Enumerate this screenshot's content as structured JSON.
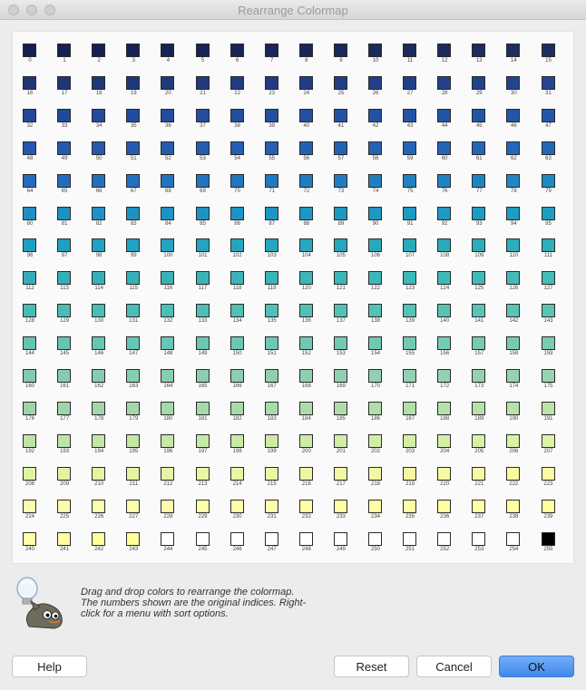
{
  "window": {
    "title": "Rearrange Colormap"
  },
  "colormap": {
    "columns": 16,
    "colors": [
      "#141f52",
      "#152053",
      "#152154",
      "#162255",
      "#172356",
      "#172457",
      "#182558",
      "#192659",
      "#1a275a",
      "#1a285b",
      "#1b295c",
      "#1b2a5d",
      "#1c2b5e",
      "#1d2c5f",
      "#1d2d60",
      "#1e2e61",
      "#1d3573",
      "#1d3675",
      "#1e3777",
      "#1e3879",
      "#1f397b",
      "#1f3a7d",
      "#203b7f",
      "#203c81",
      "#213d83",
      "#213e85",
      "#223f87",
      "#224089",
      "#23418b",
      "#23428d",
      "#24438f",
      "#254491",
      "#23479a",
      "#23489b",
      "#234a9c",
      "#234b9d",
      "#234c9e",
      "#234d9f",
      "#234ea0",
      "#234fa1",
      "#2350a2",
      "#2351a3",
      "#2352a4",
      "#2353a5",
      "#2354a6",
      "#2355a7",
      "#2356a8",
      "#2357a9",
      "#2458ab",
      "#2459ac",
      "#245aad",
      "#245bae",
      "#245cae",
      "#245daf",
      "#245eb0",
      "#245fb1",
      "#2460b2",
      "#2461b3",
      "#2462b4",
      "#2463b5",
      "#2464b6",
      "#2465b7",
      "#2466b8",
      "#2467b9",
      "#236bbb",
      "#236dbb",
      "#236fbc",
      "#2271bc",
      "#2273bd",
      "#2275bd",
      "#2277be",
      "#2179be",
      "#217bbf",
      "#217dbf",
      "#207fc0",
      "#2081c0",
      "#2083c1",
      "#1f85c1",
      "#1f87c2",
      "#1f89c2",
      "#1e8ec3",
      "#1e8fc3",
      "#1e90c3",
      "#1e91c3",
      "#1e92c3",
      "#1e93c3",
      "#1e94c3",
      "#1e95c3",
      "#1e96c3",
      "#1e97c3",
      "#1e98c3",
      "#1e99c3",
      "#1e9ac3",
      "#1e9bc3",
      "#1e9cc3",
      "#1e9dc3",
      "#209ec2",
      "#219fc1",
      "#22a0c1",
      "#23a1c0",
      "#24a2bf",
      "#25a3bf",
      "#26a4be",
      "#27a5bd",
      "#28a6bd",
      "#29a7bc",
      "#2aa8bb",
      "#2ba9bb",
      "#2caaba",
      "#2dabb9",
      "#2eacb9",
      "#2fadb8",
      "#33aeb9",
      "#34afb9",
      "#35b0b9",
      "#36b1b9",
      "#37b2b9",
      "#38b3b9",
      "#39b4b9",
      "#3ab5b9",
      "#3bb6b9",
      "#3cb7b9",
      "#3db8b9",
      "#3eb9b9",
      "#3fbab9",
      "#40bbb9",
      "#41bcb9",
      "#42bdb9",
      "#45bdb5",
      "#46beb5",
      "#48beb5",
      "#49bfb5",
      "#4bbfb5",
      "#4cc0b5",
      "#4ec0b5",
      "#4fc1b5",
      "#51c1b5",
      "#52c2b5",
      "#54c2b5",
      "#55c3b5",
      "#57c3b5",
      "#58c4b5",
      "#5ac4b5",
      "#5bc5b5",
      "#63c4b3",
      "#64c5b3",
      "#66c5b3",
      "#67c6b3",
      "#69c6b3",
      "#6ac7b3",
      "#6cc7b3",
      "#6dc8b3",
      "#6fc8b3",
      "#70c9b3",
      "#72c9b3",
      "#73cab3",
      "#75cab3",
      "#76cbb3",
      "#78cbb3",
      "#79ccb3",
      "#82cbb1",
      "#83ccb1",
      "#85ccb1",
      "#86cdb1",
      "#88cdb1",
      "#89ceb1",
      "#8bceb1",
      "#8ccfb1",
      "#8ecfb1",
      "#8fd0b1",
      "#91d0b1",
      "#92d1b1",
      "#94d1b1",
      "#95d2b1",
      "#97d2b1",
      "#98d3b1",
      "#9dd4aa",
      "#9fd5aa",
      "#a1d6aa",
      "#a3d7aa",
      "#a5d8aa",
      "#a7d9aa",
      "#a9daaa",
      "#abdbaa",
      "#addcaa",
      "#afddaa",
      "#b1deaa",
      "#b3dfaa",
      "#b5e0aa",
      "#b7e1aa",
      "#b9e2aa",
      "#bbe3aa",
      "#bde4a6",
      "#bfe5a6",
      "#c1e6a6",
      "#c3e7a6",
      "#c5e8a6",
      "#c7e9a6",
      "#c9eaa6",
      "#cbeba6",
      "#cdeca6",
      "#cfeda6",
      "#d1eea6",
      "#d3efa6",
      "#d5f0a6",
      "#d7f1a6",
      "#d9f2a6",
      "#dbf3a6",
      "#dff4a2",
      "#e1f4a2",
      "#e3f4a2",
      "#e5f5a2",
      "#e7f5a2",
      "#e9f6a2",
      "#ebf6a2",
      "#edf6a2",
      "#eff7a2",
      "#f1f7a2",
      "#f3f7a2",
      "#f5f8a2",
      "#f7f8a2",
      "#f9f8a2",
      "#fbf9a2",
      "#fdf9a2",
      "#f8fbb0",
      "#f9fbaf",
      "#fafcae",
      "#fbfcad",
      "#fcfcac",
      "#fdfdab",
      "#fefdaa",
      "#fffda9",
      "#fffda8",
      "#fffea7",
      "#fffea6",
      "#fffea5",
      "#fffea4",
      "#ffffa3",
      "#ffffa2",
      "#ffffa1",
      "#ffffa3",
      "#ffffa0",
      "#ffff9e",
      "#ffff9c",
      "#ffffff",
      "#ffffff",
      "#ffffff",
      "#ffffff",
      "#ffffff",
      "#ffffff",
      "#ffffff",
      "#ffffff",
      "#ffffff",
      "#ffffff",
      "#ffffff",
      "#000000"
    ]
  },
  "info": {
    "lines": [
      "Drag and drop colors to rearrange the colormap.",
      "The numbers shown are the original indices.  Right-",
      "click for a menu with sort options."
    ]
  },
  "buttons": {
    "help": "Help",
    "reset": "Reset",
    "cancel": "Cancel",
    "ok": "OK"
  },
  "icons": {
    "info": "gimp-wilber-lightbulb-icon"
  }
}
